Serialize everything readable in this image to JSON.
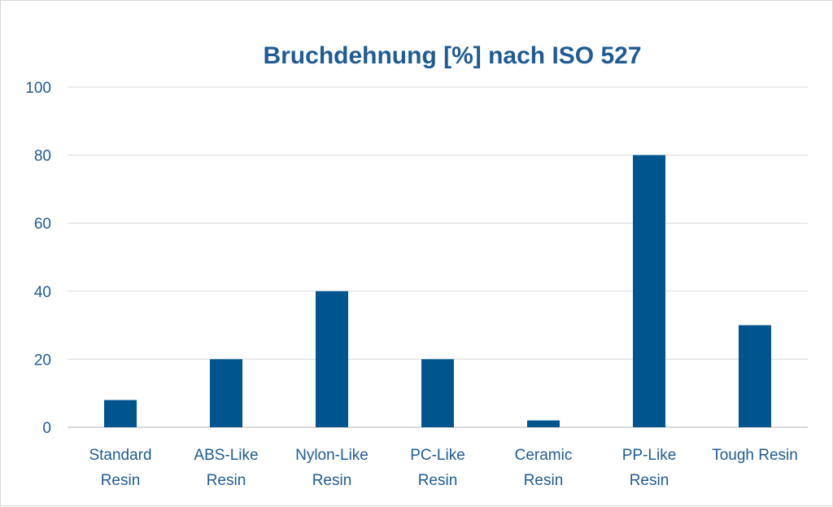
{
  "chart_data": {
    "type": "bar",
    "title": "Bruchdehnung [%] nach ISO 527",
    "categories": [
      [
        "Standard",
        "Resin"
      ],
      [
        "ABS-Like",
        "Resin"
      ],
      [
        "Nylon-Like",
        "Resin"
      ],
      [
        "PC-Like",
        "Resin"
      ],
      [
        "Ceramic",
        "Resin"
      ],
      [
        "PP-Like",
        "Resin"
      ],
      [
        "Tough Resin"
      ]
    ],
    "values": [
      8,
      20,
      40,
      20,
      2,
      80,
      30
    ],
    "ylim": [
      0,
      100
    ],
    "yticks": [
      0,
      20,
      40,
      60,
      80,
      100
    ],
    "grid": true,
    "legend": "none",
    "colors": {
      "bar": "#00558F",
      "text": "#1F5B94",
      "grid": "#d9d9d9"
    }
  }
}
